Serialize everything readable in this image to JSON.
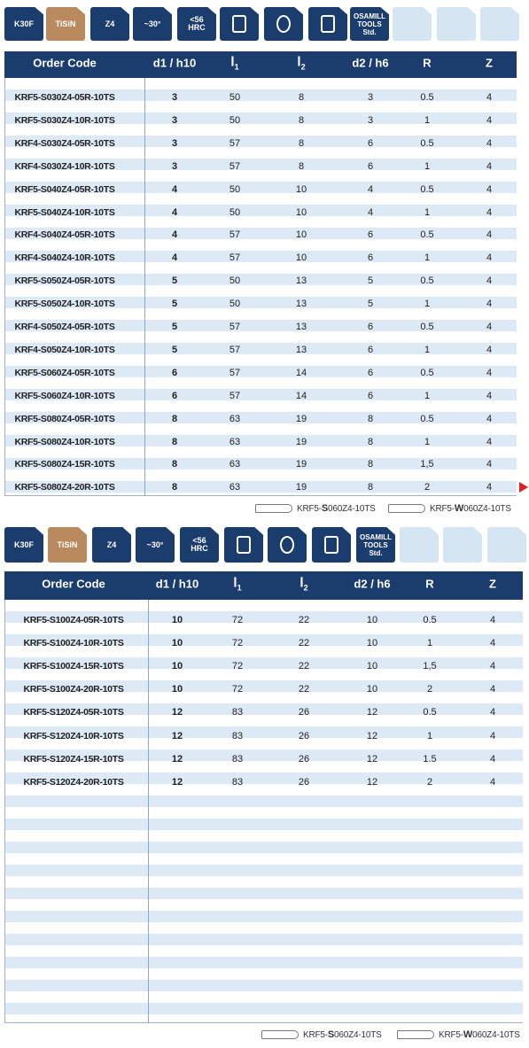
{
  "sections": [
    {
      "icons": [
        [
          "K30F"
        ],
        [
          "TiSiN"
        ],
        [
          "Z4"
        ],
        [
          "~30°"
        ],
        [
          "<56",
          "HRC"
        ],
        [
          "OSAMILL",
          "TOOLS",
          "Std."
        ]
      ],
      "table": {
        "header": [
          "Order Code",
          "d1 / h10",
          {
            "main": "l",
            "sub": "1"
          },
          {
            "main": "l",
            "sub": "2"
          },
          "d2 / h6",
          "R",
          "Z"
        ],
        "rows": [
          [
            "KRF5-S030Z4-05R-10TS",
            "3",
            "50",
            "8",
            "3",
            "0.5",
            "4"
          ],
          [
            "KRF5-S030Z4-10R-10TS",
            "3",
            "50",
            "8",
            "3",
            "1",
            "4"
          ],
          [
            "KRF4-S030Z4-05R-10TS",
            "3",
            "57",
            "8",
            "6",
            "0.5",
            "4"
          ],
          [
            "KRF4-S030Z4-10R-10TS",
            "3",
            "57",
            "8",
            "6",
            "1",
            "4"
          ],
          [
            "KRF5-S040Z4-05R-10TS",
            "4",
            "50",
            "10",
            "4",
            "0.5",
            "4"
          ],
          [
            "KRF5-S040Z4-10R-10TS",
            "4",
            "50",
            "10",
            "4",
            "1",
            "4"
          ],
          [
            "KRF4-S040Z4-05R-10TS",
            "4",
            "57",
            "10",
            "6",
            "0.5",
            "4"
          ],
          [
            "KRF4-S040Z4-10R-10TS",
            "4",
            "57",
            "10",
            "6",
            "1",
            "4"
          ],
          [
            "KRF5-S050Z4-05R-10TS",
            "5",
            "50",
            "13",
            "5",
            "0.5",
            "4"
          ],
          [
            "KRF5-S050Z4-10R-10TS",
            "5",
            "50",
            "13",
            "5",
            "1",
            "4"
          ],
          [
            "KRF4-S050Z4-05R-10TS",
            "5",
            "57",
            "13",
            "6",
            "0.5",
            "4"
          ],
          [
            "KRF4-S050Z4-10R-10TS",
            "5",
            "57",
            "13",
            "6",
            "1",
            "4"
          ],
          [
            "KRF5-S060Z4-05R-10TS",
            "6",
            "57",
            "14",
            "6",
            "0.5",
            "4"
          ],
          [
            "KRF5-S060Z4-10R-10TS",
            "6",
            "57",
            "14",
            "6",
            "1",
            "4"
          ],
          [
            "KRF5-S080Z4-05R-10TS",
            "8",
            "63",
            "19",
            "8",
            "0.5",
            "4"
          ],
          [
            "KRF5-S080Z4-10R-10TS",
            "8",
            "63",
            "19",
            "8",
            "1",
            "4"
          ],
          [
            "KRF5-S080Z4-15R-10TS",
            "8",
            "63",
            "19",
            "8",
            "1,5",
            "4"
          ],
          [
            "KRF5-S080Z4-20R-10TS",
            "8",
            "63",
            "19",
            "8",
            "2",
            "4"
          ]
        ]
      },
      "footer": [
        {
          "prefix": "KRF5-",
          "bold": "S",
          "suffix": "060Z4-10TS"
        },
        {
          "prefix": "KRF5-",
          "bold": "W",
          "suffix": "060Z4-10TS"
        }
      ]
    },
    {
      "icons": [
        [
          "K30F"
        ],
        [
          "TiSiN"
        ],
        [
          "Z4"
        ],
        [
          "~30°"
        ],
        [
          "<56",
          "HRC"
        ],
        [
          "OSAMILL",
          "TOOLS",
          "Std."
        ]
      ],
      "table": {
        "header": [
          "Order Code",
          "d1 / h10",
          {
            "main": "l",
            "sub": "1"
          },
          {
            "main": "l",
            "sub": "2"
          },
          "d2 / h6",
          "R",
          "Z"
        ],
        "rows": [
          [
            "KRF5-S100Z4-05R-10TS",
            "10",
            "72",
            "22",
            "10",
            "0.5",
            "4"
          ],
          [
            "KRF5-S100Z4-10R-10TS",
            "10",
            "72",
            "22",
            "10",
            "1",
            "4"
          ],
          [
            "KRF5-S100Z4-15R-10TS",
            "10",
            "72",
            "22",
            "10",
            "1,5",
            "4"
          ],
          [
            "KRF5-S100Z4-20R-10TS",
            "10",
            "72",
            "22",
            "10",
            "2",
            "4"
          ],
          [
            "KRF5-S120Z4-05R-10TS",
            "12",
            "83",
            "26",
            "12",
            "0.5",
            "4"
          ],
          [
            "KRF5-S120Z4-10R-10TS",
            "12",
            "83",
            "26",
            "12",
            "1",
            "4"
          ],
          [
            "KRF5-S120Z4-15R-10TS",
            "12",
            "83",
            "26",
            "12",
            "1.5",
            "4"
          ],
          [
            "KRF5-S120Z4-20R-10TS",
            "12",
            "83",
            "26",
            "12",
            "2",
            "4"
          ]
        ]
      },
      "footer": [
        {
          "prefix": "KRF5-",
          "bold": "S",
          "suffix": "060Z4-10TS"
        },
        {
          "prefix": "KRF5-",
          "bold": "W",
          "suffix": "060Z4-10TS"
        }
      ]
    }
  ]
}
